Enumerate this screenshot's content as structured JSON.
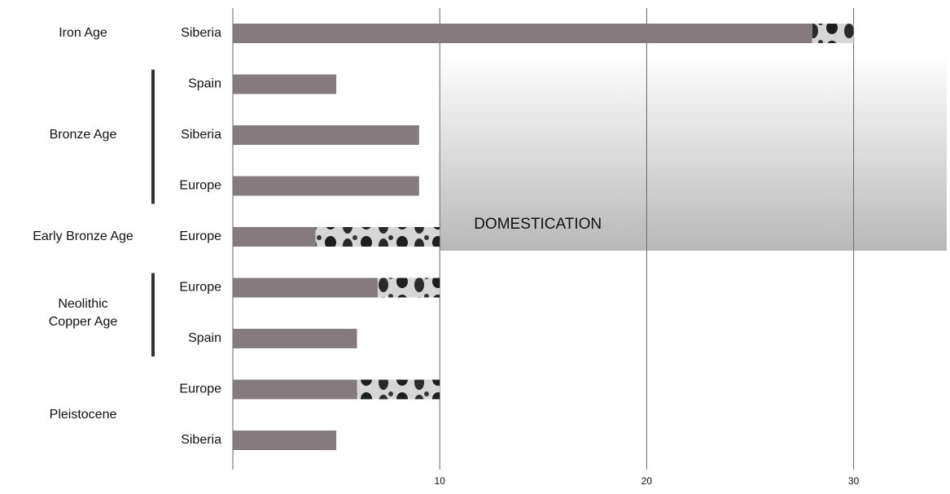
{
  "chart_data": {
    "type": "bar",
    "orientation": "horizontal",
    "groups": [
      {
        "label": [
          "Iron Age"
        ],
        "bracket": false,
        "categories": [
          "Siberia"
        ]
      },
      {
        "label": [
          "Bronze Age"
        ],
        "bracket": true,
        "categories": [
          "Spain",
          "Siberia",
          "Europe"
        ]
      },
      {
        "label": [
          "Early Bronze Age"
        ],
        "bracket": false,
        "categories": [
          "Europe"
        ]
      },
      {
        "label": [
          "Neolithic",
          "Copper Age"
        ],
        "bracket": true,
        "categories": [
          "Europe",
          "Spain"
        ]
      },
      {
        "label": [
          "Pleistocene"
        ],
        "bracket": false,
        "categories": [
          "Europe",
          "Siberia"
        ]
      }
    ],
    "series": [
      {
        "color": "#857a7e",
        "values": [
          28,
          5,
          9,
          9,
          4,
          7,
          6,
          6,
          5
        ]
      },
      {
        "color": "#d6d6d6",
        "pattern": "spots",
        "values": [
          2,
          0,
          0,
          0,
          6,
          3,
          0,
          4,
          0
        ]
      }
    ],
    "annotation": {
      "label": "DOMESTICATION",
      "start": 10
    },
    "xlim": [
      0,
      34.5
    ],
    "xticks": [
      10,
      20,
      30
    ],
    "grid": true
  }
}
